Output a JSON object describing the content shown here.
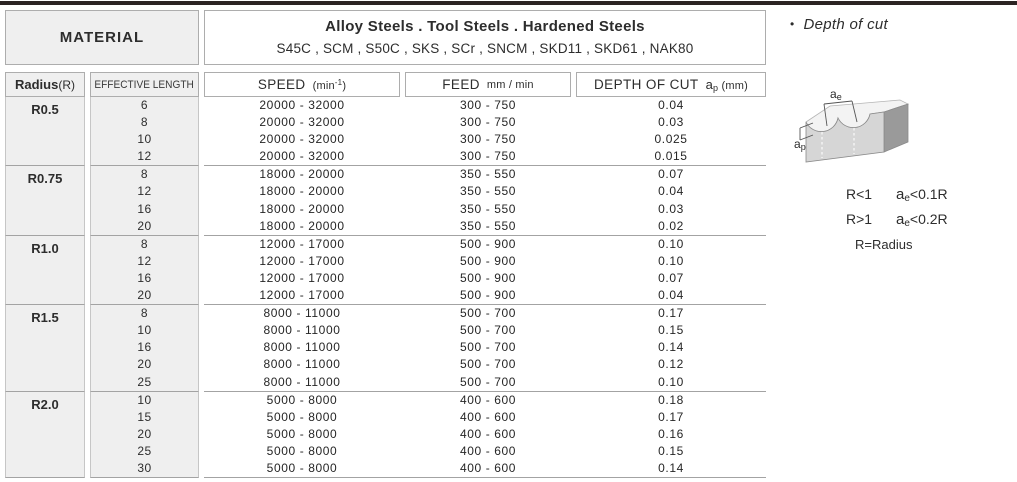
{
  "colors": {
    "top_rule": "#2b2423",
    "header_bg": "#efefef",
    "border": "#adadad",
    "text": "#2d2d2d"
  },
  "table": {
    "material_label": "MATERIAL",
    "material_line1": "Alloy  Steels . Tool Steels . Hardened Steels",
    "material_line2": "S45C , SCM , S50C , SKS , SCr , SNCM , SKD11 , SKD61 , NAK80",
    "columns": {
      "radius_bold": "Radius",
      "radius_suffix": "(R)",
      "effective_length": "EFFECTIVE LENGTH",
      "speed": "SPEED",
      "speed_unit_pre": "(min",
      "speed_unit_sup": "-1",
      "speed_unit_post": ")",
      "feed": "FEED",
      "feed_unit": "mm / min",
      "depth": "DEPTH OF CUT",
      "depth_unit_a": "a",
      "depth_unit_sub": "p",
      "depth_unit_post": "(mm)"
    },
    "groups": [
      {
        "radius": "R0.5",
        "rows": [
          {
            "length": "6",
            "speed": "20000 - 32000",
            "feed": "300 - 750",
            "depth": "0.04"
          },
          {
            "length": "8",
            "speed": "20000 - 32000",
            "feed": "300 - 750",
            "depth": "0.03"
          },
          {
            "length": "10",
            "speed": "20000 - 32000",
            "feed": "300 - 750",
            "depth": "0.025"
          },
          {
            "length": "12",
            "speed": "20000 - 32000",
            "feed": "300 - 750",
            "depth": "0.015"
          }
        ]
      },
      {
        "radius": "R0.75",
        "rows": [
          {
            "length": "8",
            "speed": "18000 - 20000",
            "feed": "350 - 550",
            "depth": "0.07"
          },
          {
            "length": "12",
            "speed": "18000 - 20000",
            "feed": "350 - 550",
            "depth": "0.04"
          },
          {
            "length": "16",
            "speed": "18000 - 20000",
            "feed": "350 - 550",
            "depth": "0.03"
          },
          {
            "length": "20",
            "speed": "18000 - 20000",
            "feed": "350 - 550",
            "depth": "0.02"
          }
        ]
      },
      {
        "radius": "R1.0",
        "rows": [
          {
            "length": "8",
            "speed": "12000 - 17000",
            "feed": "500 - 900",
            "depth": "0.10"
          },
          {
            "length": "12",
            "speed": "12000 - 17000",
            "feed": "500 - 900",
            "depth": "0.10"
          },
          {
            "length": "16",
            "speed": "12000 - 17000",
            "feed": "500 - 900",
            "depth": "0.07"
          },
          {
            "length": "20",
            "speed": "12000 - 17000",
            "feed": "500 - 900",
            "depth": "0.04"
          }
        ]
      },
      {
        "radius": "R1.5",
        "rows": [
          {
            "length": "8",
            "speed": "8000 - 11000",
            "feed": "500 - 700",
            "depth": "0.17"
          },
          {
            "length": "10",
            "speed": "8000 - 11000",
            "feed": "500 - 700",
            "depth": "0.15"
          },
          {
            "length": "16",
            "speed": "8000 - 11000",
            "feed": "500 - 700",
            "depth": "0.14"
          },
          {
            "length": "20",
            "speed": "8000 - 11000",
            "feed": "500 - 700",
            "depth": "0.12"
          },
          {
            "length": "25",
            "speed": "8000 - 11000",
            "feed": "500 - 700",
            "depth": "0.10"
          }
        ]
      },
      {
        "radius": "R2.0",
        "rows": [
          {
            "length": "10",
            "speed": "5000 - 8000",
            "feed": "400 - 600",
            "depth": "0.18"
          },
          {
            "length": "15",
            "speed": "5000 - 8000",
            "feed": "400 - 600",
            "depth": "0.17"
          },
          {
            "length": "20",
            "speed": "5000 - 8000",
            "feed": "400 - 600",
            "depth": "0.16"
          },
          {
            "length": "25",
            "speed": "5000 - 8000",
            "feed": "400 - 600",
            "depth": "0.15"
          },
          {
            "length": "30",
            "speed": "5000 - 8000",
            "feed": "400 - 600",
            "depth": "0.14"
          }
        ]
      }
    ]
  },
  "side": {
    "bullet": "•",
    "title": "Depth of cut",
    "diagram": {
      "ae_a": "a",
      "ae_sub": "e",
      "ap_a": "a",
      "ap_sub": "p"
    },
    "notes": [
      {
        "cond": "R<1",
        "a": "a",
        "sub": "e",
        "rest": "<0.1R"
      },
      {
        "cond": "R>1",
        "a": "a",
        "sub": "e",
        "rest": "<0.2R"
      }
    ],
    "radius_note": "R=Radius"
  }
}
